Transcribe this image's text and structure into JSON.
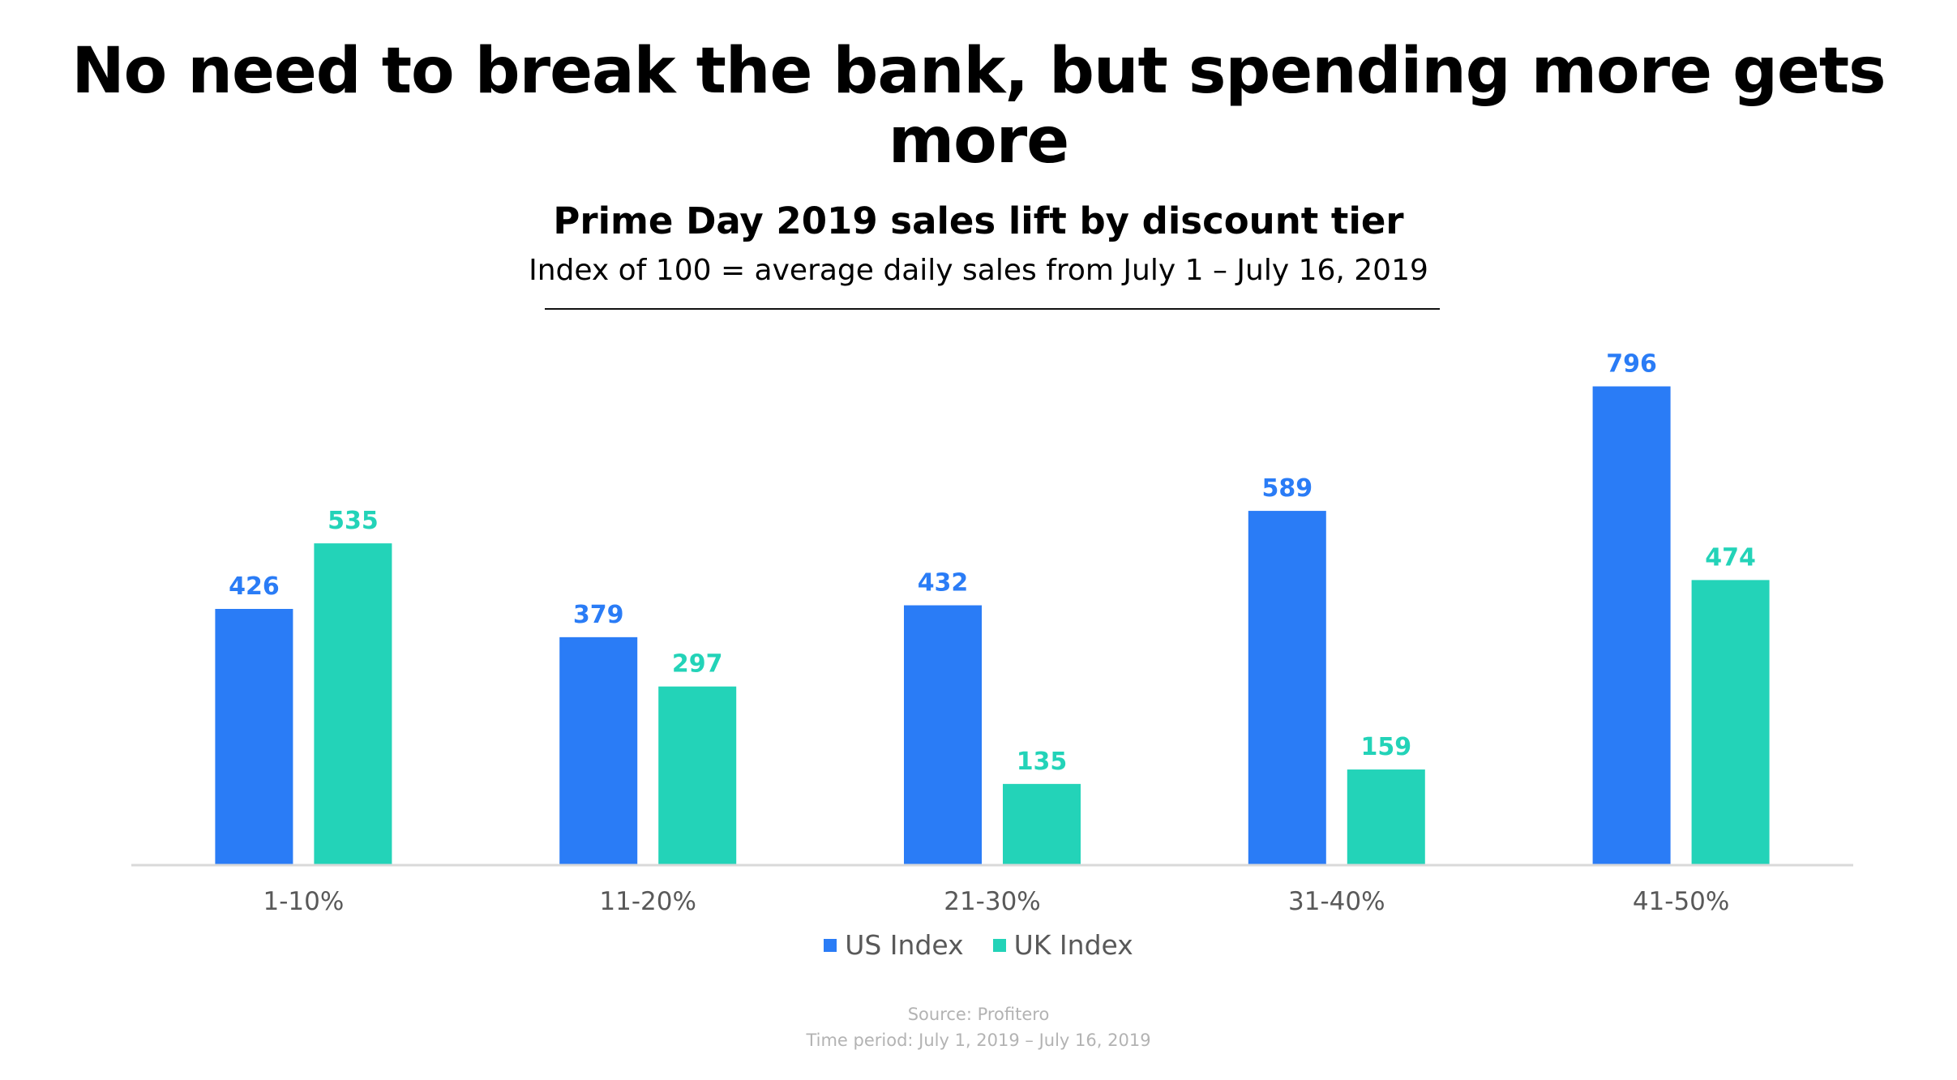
{
  "headline": "No need to break the bank, but spending more gets more",
  "chart_data": {
    "type": "bar",
    "title": "Prime Day 2019 sales lift by discount tier",
    "subtitle": "Index of 100 = average daily sales from July 1 – July 16, 2019",
    "xlabel": "",
    "ylabel": "",
    "categories": [
      "1-10%",
      "11-20%",
      "21-30%",
      "31-40%",
      "41-50%"
    ],
    "series": [
      {
        "name": "US Index",
        "color": "#2a7cf6",
        "values": [
          426,
          379,
          432,
          589,
          796
        ]
      },
      {
        "name": "UK Index",
        "color": "#23d3b8",
        "values": [
          535,
          297,
          135,
          159,
          474
        ]
      }
    ],
    "ylim": [
      0,
      800
    ],
    "grid": false,
    "data_labels": true,
    "legend": "bottom-center"
  },
  "colors": {
    "axis_line": "#d9d9d9",
    "tick_label": "#595959"
  },
  "footer": {
    "source": "Source: Profitero",
    "time_period": "Time period: July 1, 2019 – July 16, 2019"
  }
}
